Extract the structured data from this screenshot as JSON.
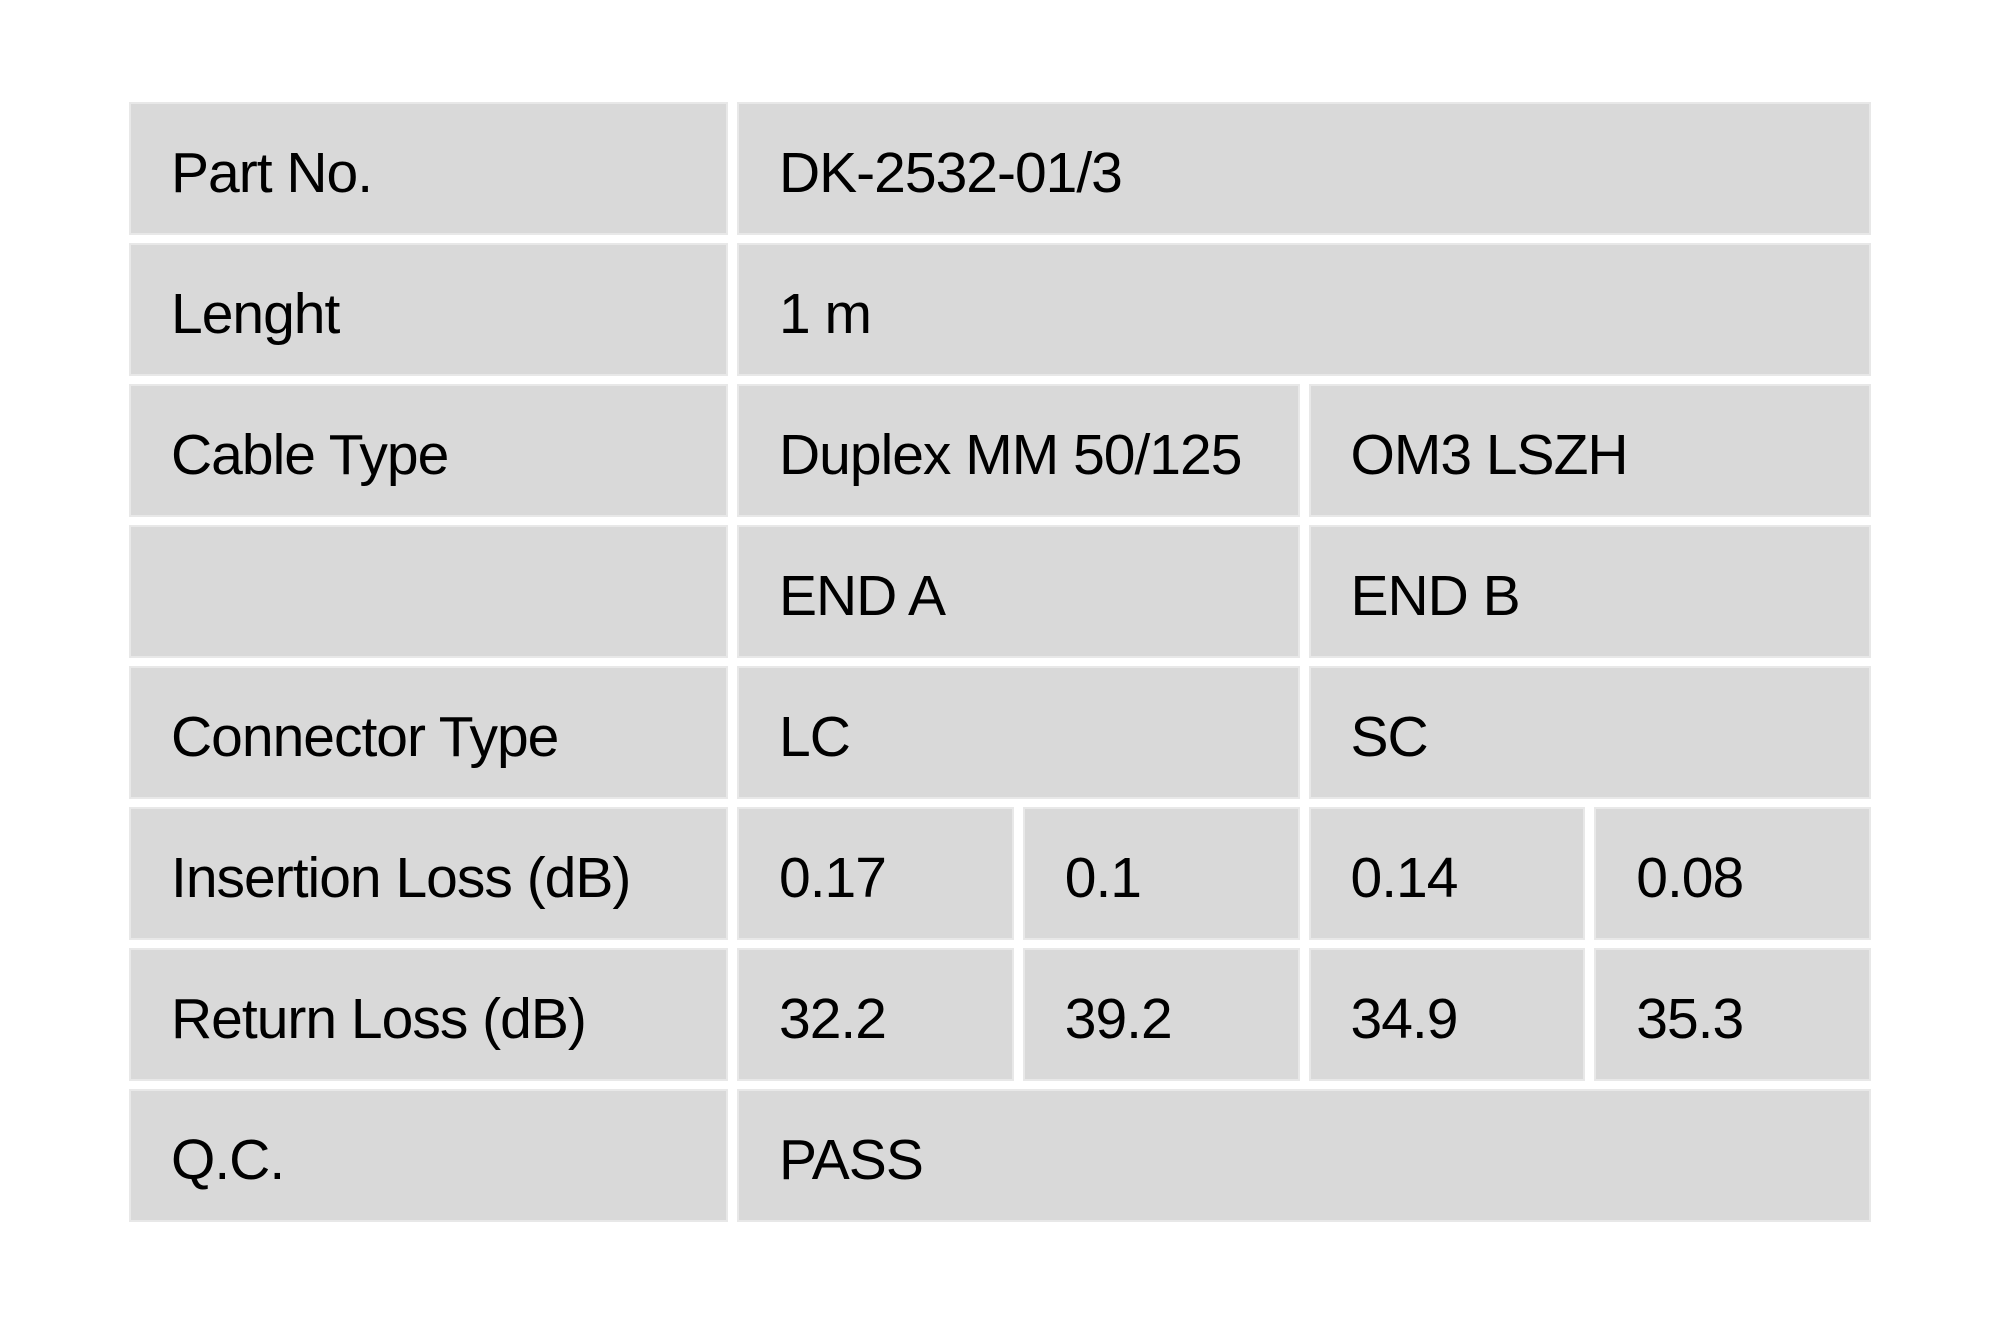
{
  "colors": {
    "page_background": "#ffffff",
    "cell_background": "#d9d9d9",
    "cell_border": "#e8e8e8",
    "text": "#000000"
  },
  "table": {
    "rows": [
      {
        "label": "Part No.",
        "value": "DK-2532-01/3"
      },
      {
        "label": "Lenght",
        "value": "1 m"
      },
      {
        "label": "Cable Type",
        "end_a": "Duplex MM 50/125",
        "end_b": "OM3 LSZH"
      },
      {
        "label": "",
        "end_a": "END A",
        "end_b": "END B"
      },
      {
        "label": "Connector Type",
        "end_a": "LC",
        "end_b": "SC"
      },
      {
        "label": "Insertion Loss (dB)",
        "values": [
          "0.17",
          "0.1",
          "0.14",
          "0.08"
        ]
      },
      {
        "label": "Return Loss (dB)",
        "values": [
          "32.2",
          "39.2",
          "34.9",
          "35.3"
        ]
      },
      {
        "label": "Q.C.",
        "value": "PASS"
      }
    ]
  }
}
